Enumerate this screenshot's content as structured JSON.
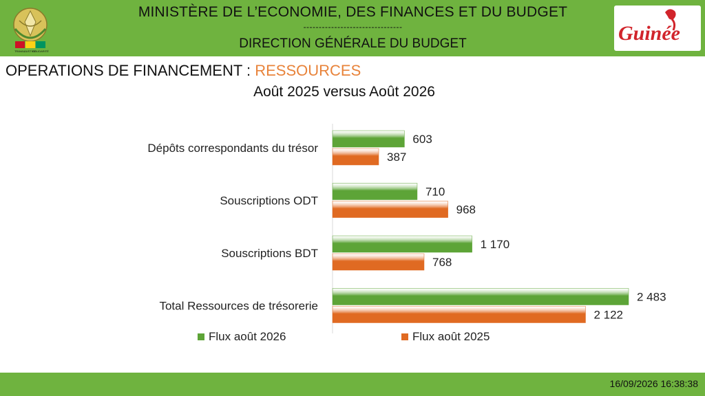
{
  "header": {
    "ministry": "MINISTÈRE DE L’ECONOMIE, DES FINANCES ET DU BUDGET",
    "separator": "--------------------------------",
    "direction": "DIRECTION GÉNÉRALE DU BUDGET",
    "emblem_motto": [
      "TRAVAIL",
      "JUSTICE",
      "SOLIDARITÉ"
    ],
    "logo_text": "Guinée"
  },
  "page": {
    "title_prefix": "OPERATIONS DE FINANCEMENT : ",
    "title_highlight": "RESSOURCES",
    "subtitle": "Août 2025 versus Août 2026"
  },
  "chart_data": {
    "type": "bar",
    "orientation": "horizontal",
    "categories": [
      "Dépôts  correspondants du trésor",
      "Souscriptions ODT",
      "Souscriptions BDT",
      "Total Ressources de trésorerie"
    ],
    "series": [
      {
        "name": "Flux août 2026",
        "values": [
          603,
          710,
          1170,
          2483
        ],
        "labels": [
          "603",
          "710",
          "1 170",
          "2 483"
        ],
        "color": "#5da437"
      },
      {
        "name": "Flux août 2025",
        "values": [
          387,
          968,
          768,
          2122
        ],
        "labels": [
          "387",
          "968",
          "768",
          "2 122"
        ],
        "color": "#e06a22"
      }
    ],
    "xlim": [
      0,
      2483
    ],
    "grid": false,
    "legend": "bottom"
  },
  "colors": {
    "band": "#6fb33f",
    "accent_orange": "#e8833a",
    "green_bar": "#5da437",
    "orange_bar": "#e06a22",
    "logo_red": "#d1242b"
  },
  "footer": {
    "timestamp": "16/09/2026 16:38:38"
  }
}
